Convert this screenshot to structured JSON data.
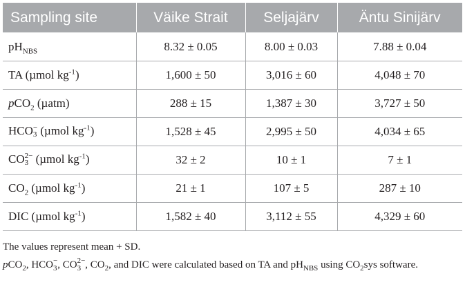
{
  "table": {
    "header": {
      "site": "Sampling site",
      "col1": "Väike Strait",
      "col2": "Seljajärv",
      "col3": "Äntu Sinijärv"
    },
    "rows": [
      {
        "label_main": "pH",
        "label_sub": "NBS",
        "v1": "8.32 ± 0.05",
        "v2": "8.00 ± 0.03",
        "v3": "7.88 ± 0.04"
      },
      {
        "label_pre": "TA (µmol kg",
        "label_sup": "-1",
        "label_post": ")",
        "v1": "1,600 ± 50",
        "v2": "3,016 ± 60",
        "v3": "4,048 ± 70"
      },
      {
        "label_italic": "p",
        "label_main": "CO",
        "label_sub": "2",
        "label_post": " (µatm)",
        "v1": "288 ± 15",
        "v2": "1,387 ± 30",
        "v3": "3,727 ± 50"
      },
      {
        "label_main": "HCO",
        "label_sup": "−",
        "label_sub": "3",
        "label_post": " (µmol kg",
        "label_sup2": "-1",
        "label_post2": ")",
        "v1": "1,528 ± 45",
        "v2": "2,995 ± 50",
        "v3": "4,034 ± 65"
      },
      {
        "label_main": "CO",
        "label_sup": "2−",
        "label_sub": "3",
        "label_post": " (µmol kg",
        "label_sup2": "-1",
        "label_post2": ")",
        "v1": "32 ± 2",
        "v2": "10 ± 1",
        "v3": "7 ± 1"
      },
      {
        "label_main": "CO",
        "label_sub": "2",
        "label_post": " (µmol kg",
        "label_sup2": "-1",
        "label_post2": ")",
        "v1": "21 ± 1",
        "v2": "107 ± 5",
        "v3": "287 ± 10"
      },
      {
        "label_pre": "DIC (µmol kg",
        "label_sup": "-1",
        "label_post": ")",
        "v1": "1,582 ± 40",
        "v2": "3,112 ± 55",
        "v3": "4,329 ± 60"
      }
    ]
  },
  "footnotes": {
    "note1": "The values represent mean + SD.",
    "note2": {
      "p": "p",
      "co2": "CO",
      "co2_sub": "2",
      "sep1": ", HCO",
      "hco3_sup": "−",
      "hco3_sub": "3",
      "sep2": ", CO",
      "co3_sup": "2−",
      "co3_sub": "3",
      "sep3": ", CO",
      "co2b_sub": "2",
      "mid": ", and DIC were calculated based on TA and pH",
      "nbs": "NBS",
      "using": " using",
      "co2sys": "CO",
      "co2sys_sub": "2",
      "tail": "sys software."
    }
  }
}
